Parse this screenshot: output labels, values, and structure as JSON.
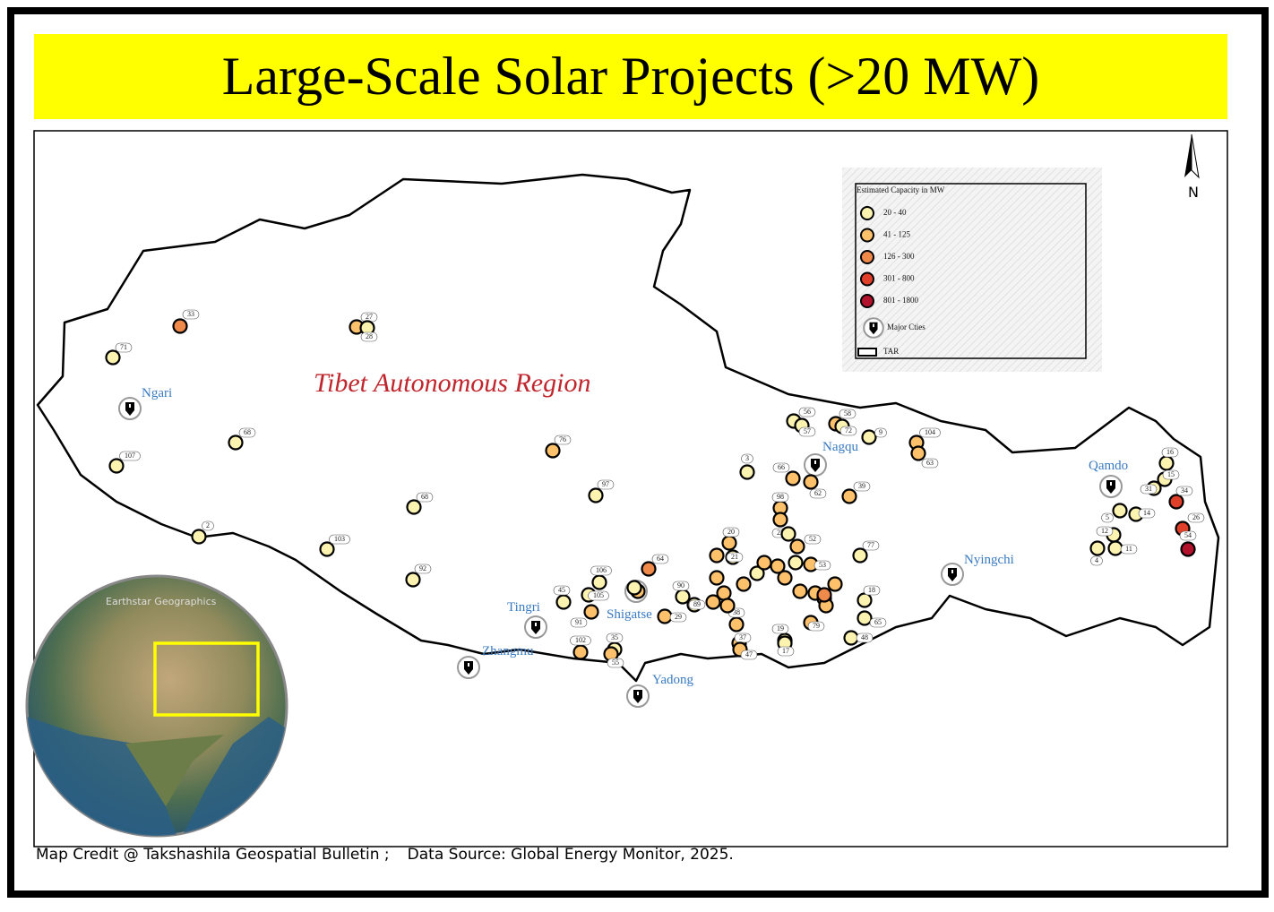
{
  "title": "Large-Scale Solar Projects (>20 MW)",
  "region_label": "Tibet Autonomous Region",
  "north": "N",
  "inset_credit": "Earthstar Geographics",
  "credit": [
    "Map Credit @ Takshashila Geospatial Bulletin ;",
    "Data Source: Global Energy Monitor, 2025."
  ],
  "legend": {
    "title": "Estimated Capacity in MW",
    "classes": [
      {
        "label": "20 - 40",
        "color": "#fdf3b0"
      },
      {
        "label": "41 - 125",
        "color": "#fdc06b"
      },
      {
        "label": "126 - 300",
        "color": "#f08a4b"
      },
      {
        "label": "301 - 800",
        "color": "#e0402a"
      },
      {
        "label": "801 - 1800",
        "color": "#b3122c"
      }
    ],
    "city_label": "Major Cties",
    "boundary_label": "TAR"
  },
  "cities": [
    "Ngari",
    "Nagqu",
    "Qamdo",
    "Nyingchi",
    "Tingri",
    "Shigatse",
    "Zhangmu",
    "Yadong"
  ],
  "projects": [
    {
      "label": "33",
      "class": 2
    },
    {
      "label": "71",
      "class": 0
    },
    {
      "label": "27",
      "class": 1
    },
    {
      "label": "28",
      "class": 0
    },
    {
      "label": "68",
      "class": 0
    },
    {
      "label": "107",
      "class": 0
    },
    {
      "label": "2",
      "class": 0
    },
    {
      "label": "76",
      "class": 1
    },
    {
      "label": "97",
      "class": 0
    },
    {
      "label": "68",
      "class": 0
    },
    {
      "label": "103",
      "class": 0
    },
    {
      "label": "92",
      "class": 0
    },
    {
      "label": "56",
      "class": 0
    },
    {
      "label": "57",
      "class": 0
    },
    {
      "label": "58",
      "class": 1
    },
    {
      "label": "72",
      "class": 0
    },
    {
      "label": "9",
      "class": 0
    },
    {
      "label": "104",
      "class": 1
    },
    {
      "label": "63",
      "class": 1
    },
    {
      "label": "3",
      "class": 0
    },
    {
      "label": "66",
      "class": 1
    },
    {
      "label": "62",
      "class": 1
    },
    {
      "label": "39",
      "class": 1
    },
    {
      "label": "98",
      "class": 1
    },
    {
      "label": "22",
      "class": 1
    },
    {
      "label": "20",
      "class": 1
    },
    {
      "label": "21",
      "class": 0
    },
    {
      "label": "52",
      "class": 1
    },
    {
      "label": "53",
      "class": 1
    },
    {
      "label": "77",
      "class": 0
    },
    {
      "label": "64",
      "class": 2
    },
    {
      "label": "106",
      "class": 0
    },
    {
      "label": "45",
      "class": 0
    },
    {
      "label": "105",
      "class": 0
    },
    {
      "label": "91",
      "class": 1
    },
    {
      "label": "90",
      "class": 0
    },
    {
      "label": "89",
      "class": 0
    },
    {
      "label": "29",
      "class": 1
    },
    {
      "label": "38",
      "class": 1
    },
    {
      "label": "37",
      "class": 1
    },
    {
      "label": "47",
      "class": 1
    },
    {
      "label": "19",
      "class": 0
    },
    {
      "label": "17",
      "class": 0
    },
    {
      "label": "79",
      "class": 1
    },
    {
      "label": "18",
      "class": 0
    },
    {
      "label": "65",
      "class": 0
    },
    {
      "label": "48",
      "class": 0
    },
    {
      "label": "102",
      "class": 1
    },
    {
      "label": "35",
      "class": 0
    },
    {
      "label": "55",
      "class": 1
    },
    {
      "label": "16",
      "class": 0
    },
    {
      "label": "15",
      "class": 0
    },
    {
      "label": "31",
      "class": 0
    },
    {
      "label": "34",
      "class": 3
    },
    {
      "label": "14",
      "class": 0
    },
    {
      "label": "5",
      "class": 0
    },
    {
      "label": "12",
      "class": 0
    },
    {
      "label": "26",
      "class": 3
    },
    {
      "label": "54",
      "class": 4
    },
    {
      "label": "11",
      "class": 0
    },
    {
      "label": "4",
      "class": 0
    },
    {
      "label": null,
      "class": 1
    },
    {
      "label": null,
      "class": 1
    },
    {
      "label": null,
      "class": 1
    },
    {
      "label": null,
      "class": 1
    },
    {
      "label": null,
      "class": 0
    },
    {
      "label": null,
      "class": 1
    },
    {
      "label": null,
      "class": 1
    },
    {
      "label": null,
      "class": 0
    },
    {
      "label": null,
      "class": 1
    },
    {
      "label": null,
      "class": 1
    },
    {
      "label": null,
      "class": 1
    },
    {
      "label": null,
      "class": 0
    },
    {
      "label": null,
      "class": 1
    },
    {
      "label": null,
      "class": 2
    },
    {
      "label": null,
      "class": 1
    },
    {
      "label": null,
      "class": 1
    },
    {
      "label": null,
      "class": 0
    },
    {
      "label": null,
      "class": 1
    },
    {
      "label": null,
      "class": 1
    },
    {
      "label": null,
      "class": 0
    }
  ]
}
